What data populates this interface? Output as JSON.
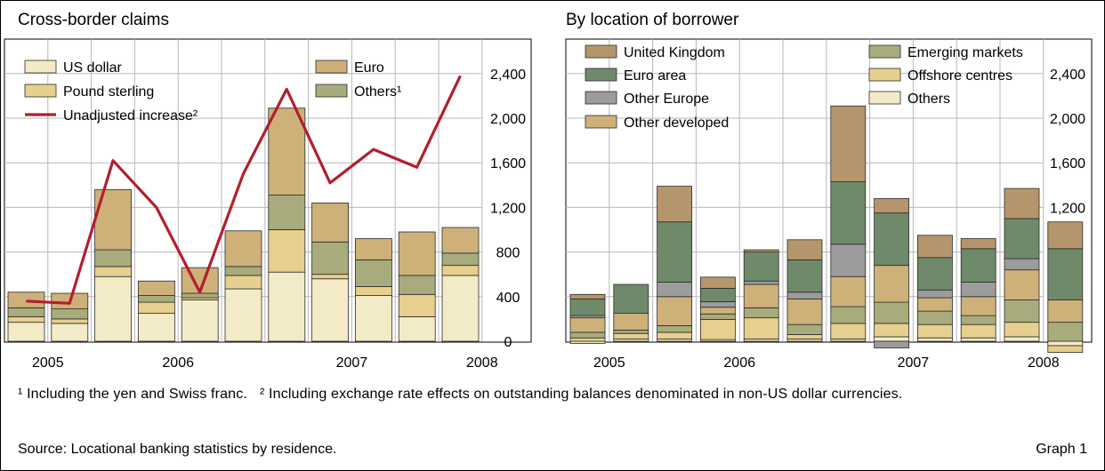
{
  "footnotes": [
    "¹ Including the yen and Swiss franc.",
    "² Including exchange rate effects on outstanding balances denominated in non-US dollar currencies."
  ],
  "source": "Source: Locational banking statistics by residence.",
  "graph_label": "Graph 1",
  "chart_data": [
    {
      "type": "bar",
      "stacked": true,
      "title": "Cross-border claims",
      "ylim": [
        0,
        2600
      ],
      "yticks": [
        0,
        400,
        800,
        1200,
        1600,
        2000,
        2400
      ],
      "ytick_labels": [
        "0",
        "400",
        "800",
        "1,200",
        "1,600",
        "2,000",
        "2,400"
      ],
      "categories": [
        "2005 Q1",
        "2005 Q2",
        "2005 Q3",
        "2005 Q4",
        "2006 Q1",
        "2006 Q2",
        "2006 Q3",
        "2006 Q4",
        "2007 Q1",
        "2007 Q2",
        "2007 Q3",
        "2007 Q4"
      ],
      "year_labels": [
        {
          "label": "2005",
          "after_bar": 1
        },
        {
          "label": "2006",
          "after_bar": 4
        },
        {
          "label": "2007",
          "after_bar": 8
        },
        {
          "label": "2008",
          "after_bar": 11
        }
      ],
      "grid": true,
      "legend_position": "top",
      "series": [
        {
          "name": "US dollar",
          "color": "#f3ebc7",
          "values": [
            170,
            160,
            580,
            250,
            370,
            470,
            620,
            560,
            410,
            220,
            590,
            0
          ]
        },
        {
          "name": "Pound sterling",
          "color": "#e7cf8d",
          "values": [
            50,
            40,
            90,
            100,
            20,
            120,
            380,
            40,
            80,
            200,
            90,
            0
          ]
        },
        {
          "name": "Others¹",
          "color": "#a8ac7c",
          "values": [
            80,
            90,
            150,
            60,
            40,
            80,
            310,
            290,
            240,
            170,
            110,
            0
          ]
        },
        {
          "name": "Euro",
          "color": "#ceb079",
          "values": [
            140,
            140,
            540,
            130,
            230,
            320,
            780,
            350,
            190,
            390,
            230,
            0
          ]
        }
      ],
      "line": {
        "name": "Unadjusted increase²",
        "color": "#b21e2d",
        "x_slots": [
          0.5,
          1.5,
          2.5,
          3.5,
          4.5,
          5.5,
          6.5,
          7.5,
          8.5,
          9.5,
          10.5
        ],
        "values": [
          360,
          340,
          1620,
          1200,
          440,
          1500,
          2260,
          1420,
          1720,
          1560,
          2380
        ]
      }
    },
    {
      "type": "bar",
      "stacked": true,
      "title": "By location of borrower",
      "ylim": [
        0,
        2600
      ],
      "yticks": [
        0,
        400,
        800,
        1200,
        1600,
        2000,
        2400
      ],
      "ytick_labels": [
        "0",
        "400",
        "800",
        "1,200",
        "1,600",
        "2,000",
        "2,400"
      ],
      "categories": [
        "2005 Q1",
        "2005 Q2",
        "2005 Q3",
        "2005 Q4",
        "2006 Q1",
        "2006 Q2",
        "2006 Q3",
        "2006 Q4",
        "2007 Q1",
        "2007 Q2",
        "2007 Q3",
        "2007 Q4"
      ],
      "year_labels": [
        {
          "label": "2005",
          "after_bar": 1
        },
        {
          "label": "2006",
          "after_bar": 4
        },
        {
          "label": "2007",
          "after_bar": 8
        },
        {
          "label": "2008",
          "after_bar": 11
        }
      ],
      "grid": true,
      "legend_position": "top",
      "series": [
        {
          "name": "Others",
          "color": "#f3ebc7",
          "values": [
            -20,
            20,
            20,
            15,
            20,
            20,
            20,
            40,
            30,
            30,
            40,
            -40
          ]
        },
        {
          "name": "Offshore centres",
          "color": "#e7cf8d",
          "values": [
            30,
            50,
            60,
            180,
            190,
            40,
            140,
            120,
            120,
            120,
            130,
            -60
          ]
        },
        {
          "name": "Emerging markets",
          "color": "#a8ac7c",
          "values": [
            50,
            30,
            60,
            50,
            90,
            90,
            150,
            190,
            120,
            80,
            200,
            170
          ]
        },
        {
          "name": "Other developed",
          "color": "#ceb079",
          "values": [
            130,
            150,
            260,
            60,
            210,
            230,
            270,
            330,
            120,
            170,
            270,
            200
          ]
        },
        {
          "name": "Other Europe",
          "color": "#9c9c9c",
          "values": [
            20,
            0,
            130,
            50,
            30,
            60,
            290,
            -60,
            70,
            130,
            100,
            0
          ]
        },
        {
          "name": "Euro area",
          "color": "#6f8a6a",
          "values": [
            150,
            260,
            540,
            120,
            260,
            290,
            560,
            470,
            290,
            300,
            360,
            460
          ]
        },
        {
          "name": "United Kingdom",
          "color": "#b5966c",
          "values": [
            40,
            0,
            320,
            100,
            20,
            180,
            680,
            130,
            200,
            90,
            270,
            240
          ]
        }
      ]
    }
  ]
}
